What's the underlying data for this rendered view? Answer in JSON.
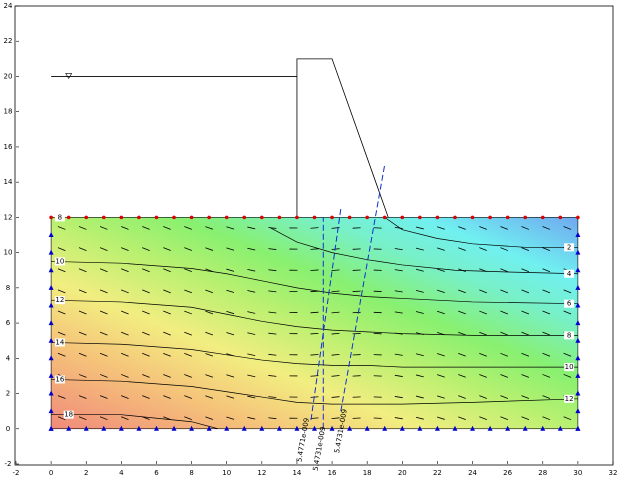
{
  "chart_data": {
    "type": "contour",
    "xlim": [
      -2,
      32
    ],
    "ylim": [
      -2,
      24
    ],
    "xticks": [
      -2,
      0,
      2,
      4,
      6,
      8,
      10,
      12,
      14,
      16,
      18,
      20,
      22,
      24,
      26,
      28,
      30,
      32
    ],
    "yticks": [
      -2,
      0,
      2,
      4,
      6,
      8,
      10,
      12,
      14,
      16,
      18,
      20,
      22,
      24
    ],
    "contours": [
      {
        "x": [
          0,
          4,
          8,
          10,
          12,
          14,
          16,
          18,
          20,
          24,
          30
        ],
        "y": [
          9.5,
          9.4,
          9.1,
          8.8,
          8.4,
          8.0,
          7.7,
          7.5,
          7.4,
          7.2,
          7.1
        ]
      },
      {
        "x": [
          0,
          4,
          8,
          10,
          12,
          14,
          16,
          18,
          20,
          24,
          30
        ],
        "y": [
          7.3,
          7.2,
          6.9,
          6.5,
          6.1,
          5.8,
          5.6,
          5.5,
          5.4,
          5.3,
          5.3
        ]
      },
      {
        "x": [
          0,
          4,
          8,
          10,
          12,
          14,
          16,
          18,
          20,
          24,
          30
        ],
        "y": [
          4.9,
          4.8,
          4.5,
          4.2,
          3.9,
          3.7,
          3.6,
          3.6,
          3.5,
          3.5,
          3.5
        ]
      },
      {
        "x": [
          0,
          4,
          8,
          10,
          12,
          14,
          16,
          18,
          20,
          24,
          30
        ],
        "y": [
          2.8,
          2.7,
          2.4,
          2.1,
          1.8,
          1.5,
          1.4,
          1.4,
          1.4,
          1.5,
          1.7
        ]
      },
      {
        "x": [
          0,
          4,
          8,
          9.5
        ],
        "y": [
          0.8,
          0.8,
          0.4,
          0
        ]
      },
      {
        "x": [
          19,
          20,
          22,
          24,
          27,
          30
        ],
        "y": [
          12,
          11.3,
          10.8,
          10.5,
          10.3,
          10.3
        ]
      },
      {
        "x": [
          12.5,
          14,
          16,
          18,
          20,
          23,
          26,
          30
        ],
        "y": [
          11.4,
          10.6,
          10.0,
          9.6,
          9.3,
          9.0,
          8.9,
          8.8
        ]
      }
    ],
    "contour_labels": [
      {
        "label": "8",
        "x": 0.5,
        "y": 12
      },
      {
        "label": "10",
        "x": 0.5,
        "y": 9.5
      },
      {
        "label": "12",
        "x": 0.5,
        "y": 7.3
      },
      {
        "label": "14",
        "x": 0.5,
        "y": 4.9
      },
      {
        "label": "16",
        "x": 0.5,
        "y": 2.8
      },
      {
        "label": "18",
        "x": 1,
        "y": 0.8
      },
      {
        "label": "2",
        "x": 29.5,
        "y": 10.3
      },
      {
        "label": "4",
        "x": 29.5,
        "y": 8.8
      },
      {
        "label": "6",
        "x": 29.5,
        "y": 7.1
      },
      {
        "label": "8",
        "x": 29.5,
        "y": 5.3
      },
      {
        "label": "10",
        "x": 29.5,
        "y": 3.5
      },
      {
        "label": "12",
        "x": 29.5,
        "y": 1.7
      }
    ],
    "embankment": {
      "x": [
        14,
        14,
        16,
        19.2
      ],
      "y": [
        12,
        21,
        21,
        12
      ]
    },
    "water_level": {
      "x": [
        0,
        14
      ],
      "y": [
        20,
        20
      ]
    },
    "flux_sections": [
      {
        "label": "5.4771e-009",
        "x": [
          14.8,
          16.5
        ],
        "y": [
          0.5,
          12.5
        ]
      },
      {
        "label": "5.4731e-009",
        "x": [
          15.5,
          15.5
        ],
        "y": [
          0,
          12
        ]
      },
      {
        "label": "5.4731e-009",
        "x": [
          16.5,
          19
        ],
        "y": [
          1,
          15
        ]
      }
    ]
  }
}
